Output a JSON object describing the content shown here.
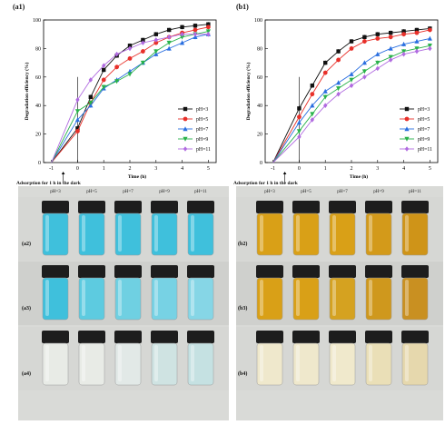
{
  "figure": {
    "panel_a1": "(a1)",
    "panel_b1": "(b1)",
    "dark_note": "Adsorption for 1 h in the dark",
    "photo_row_labels_a": [
      "(a2)",
      "(a3)",
      "(a4)"
    ],
    "photo_row_labels_b": [
      "(b2)",
      "(b3)",
      "(b4)"
    ],
    "photo_col_labels": [
      "pH=3",
      "pH=5",
      "pH=7",
      "pH=9",
      "pH=11"
    ],
    "colors": {
      "pH3": "#111111",
      "pH5": "#e8302a",
      "pH7": "#2a6fe0",
      "pH9": "#29b24a",
      "pH11": "#b06ae0",
      "blue_liquid": "#3fc0dc",
      "amber_liquid": "#d9a017",
      "clear_liquid": "#e8ebe6",
      "pale_liquid": "#efe8cc"
    }
  },
  "chart_data": [
    {
      "type": "line",
      "panel": "(a1)",
      "xlabel": "Time (h)",
      "ylabel": "Degradation efficiency (%)",
      "x": [
        -1,
        0,
        0.5,
        1,
        1.5,
        2,
        2.5,
        3,
        3.5,
        4,
        4.5,
        5
      ],
      "xticks": [
        "-1",
        "0",
        "1",
        "2",
        "3",
        "4",
        "5"
      ],
      "ylim": [
        0,
        100
      ],
      "yticks": [
        0,
        20,
        40,
        60,
        80,
        100
      ],
      "legend_position": "right",
      "series": [
        {
          "name": "pH=3",
          "values": [
            0,
            24,
            46,
            65,
            75,
            82,
            86,
            90,
            93,
            95,
            96,
            97
          ]
        },
        {
          "name": "pH=5",
          "values": [
            0,
            22,
            42,
            58,
            67,
            73,
            78,
            84,
            88,
            91,
            93,
            95
          ]
        },
        {
          "name": "pH=7",
          "values": [
            0,
            30,
            40,
            52,
            58,
            64,
            70,
            76,
            80,
            84,
            88,
            90
          ]
        },
        {
          "name": "pH=9",
          "values": [
            0,
            36,
            42,
            53,
            57,
            62,
            70,
            78,
            84,
            88,
            90,
            92
          ]
        },
        {
          "name": "pH=11",
          "values": [
            0,
            44,
            58,
            68,
            76,
            80,
            84,
            86,
            88,
            90,
            90,
            90
          ]
        }
      ]
    },
    {
      "type": "line",
      "panel": "(b1)",
      "xlabel": "Time (h)",
      "ylabel": "Degradation efficiency (%)",
      "x": [
        -1,
        0,
        0.5,
        1,
        1.5,
        2,
        2.5,
        3,
        3.5,
        4,
        4.5,
        5
      ],
      "xticks": [
        "-1",
        "0",
        "1",
        "2",
        "3",
        "4",
        "5"
      ],
      "ylim": [
        0,
        100
      ],
      "yticks": [
        0,
        20,
        40,
        60,
        80,
        100
      ],
      "legend_position": "right",
      "series": [
        {
          "name": "pH=3",
          "values": [
            0,
            38,
            54,
            70,
            78,
            85,
            88,
            90,
            91,
            92,
            93,
            94
          ]
        },
        {
          "name": "pH=5",
          "values": [
            0,
            32,
            48,
            63,
            72,
            80,
            85,
            87,
            88,
            90,
            91,
            93
          ]
        },
        {
          "name": "pH=7",
          "values": [
            0,
            28,
            40,
            50,
            56,
            62,
            70,
            76,
            80,
            83,
            85,
            87
          ]
        },
        {
          "name": "pH=9",
          "values": [
            0,
            22,
            34,
            46,
            52,
            58,
            64,
            70,
            74,
            78,
            80,
            82
          ]
        },
        {
          "name": "pH=11",
          "values": [
            0,
            18,
            30,
            40,
            48,
            54,
            60,
            66,
            72,
            76,
            78,
            80
          ]
        }
      ]
    }
  ]
}
